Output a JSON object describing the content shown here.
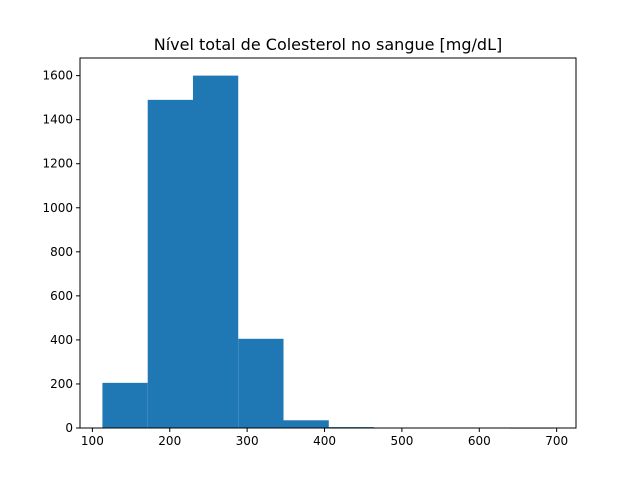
{
  "chart_data": {
    "type": "bar",
    "title": "Nível total de Colesterol no sangue [mg/dL]",
    "xlabel": "",
    "ylabel": "",
    "bins": [
      {
        "x0": 113,
        "x1": 171.5,
        "count": 205
      },
      {
        "x0": 171.5,
        "x1": 230,
        "count": 1490
      },
      {
        "x0": 230,
        "x1": 288.5,
        "count": 1600
      },
      {
        "x0": 288.5,
        "x1": 347,
        "count": 405
      },
      {
        "x0": 347,
        "x1": 405.5,
        "count": 35
      },
      {
        "x0": 405.5,
        "x1": 464,
        "count": 4
      },
      {
        "x0": 464,
        "x1": 522.5,
        "count": 0
      },
      {
        "x0": 522.5,
        "x1": 581,
        "count": 0
      },
      {
        "x0": 581,
        "x1": 639.5,
        "count": 0
      },
      {
        "x0": 639.5,
        "x1": 696,
        "count": 1
      }
    ],
    "xlim": [
      84,
      725
    ],
    "ylim": [
      0,
      1680
    ],
    "xticks": [
      "100",
      "200",
      "300",
      "400",
      "500",
      "600",
      "700"
    ],
    "yticks": [
      "0",
      "200",
      "400",
      "600",
      "800",
      "1000",
      "1200",
      "1400",
      "1600"
    ],
    "grid": false,
    "bar_color": "#1f77b4"
  }
}
